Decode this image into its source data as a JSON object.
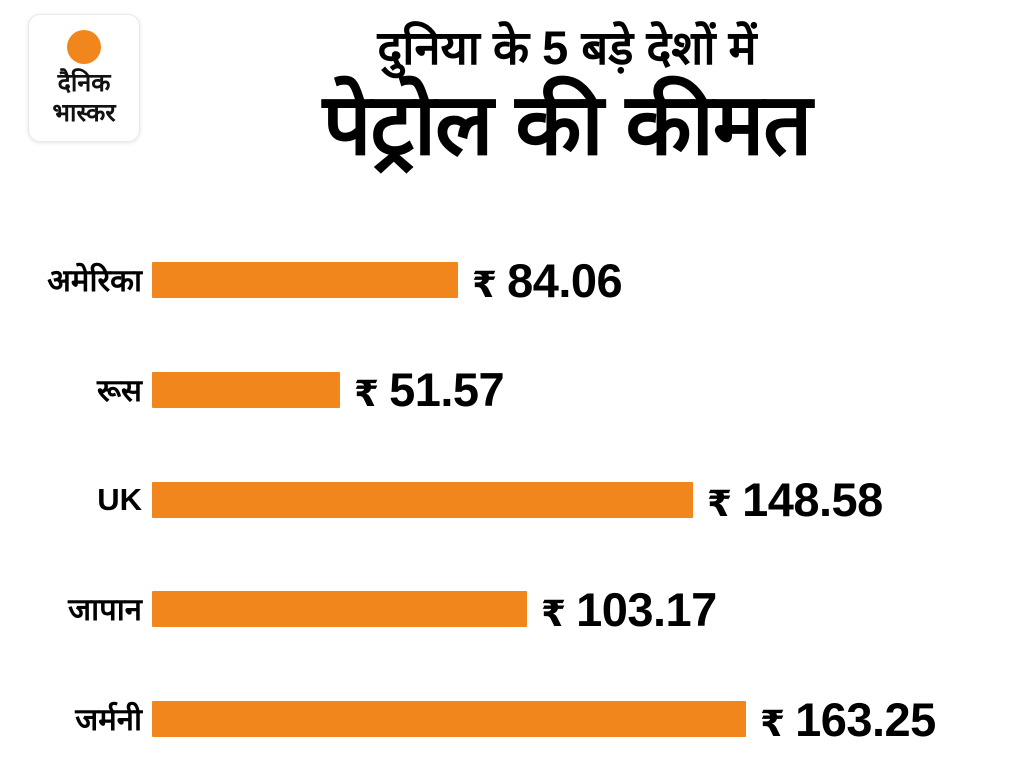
{
  "brand": {
    "logo_line1": "दैनिक",
    "logo_line2": "भास्कर",
    "accent_color": "#F0861C"
  },
  "header": {
    "subtitle": "दुनिया के 5 बड़े देशों में",
    "title": "पेट्रोल की कीमत"
  },
  "chart_data": {
    "type": "bar",
    "orientation": "horizontal",
    "title": "पेट्रोल की कीमत",
    "subtitle": "दुनिया के 5 बड़े देशों में",
    "categories": [
      "अमेरिका",
      "रूस",
      "UK",
      "जापान",
      "जर्मनी"
    ],
    "values": [
      84.06,
      51.57,
      148.58,
      103.17,
      163.25
    ],
    "value_prefix": "₹",
    "bar_color": "#F0861C",
    "xlim": [
      0,
      170
    ],
    "grid": false,
    "legend": false
  }
}
